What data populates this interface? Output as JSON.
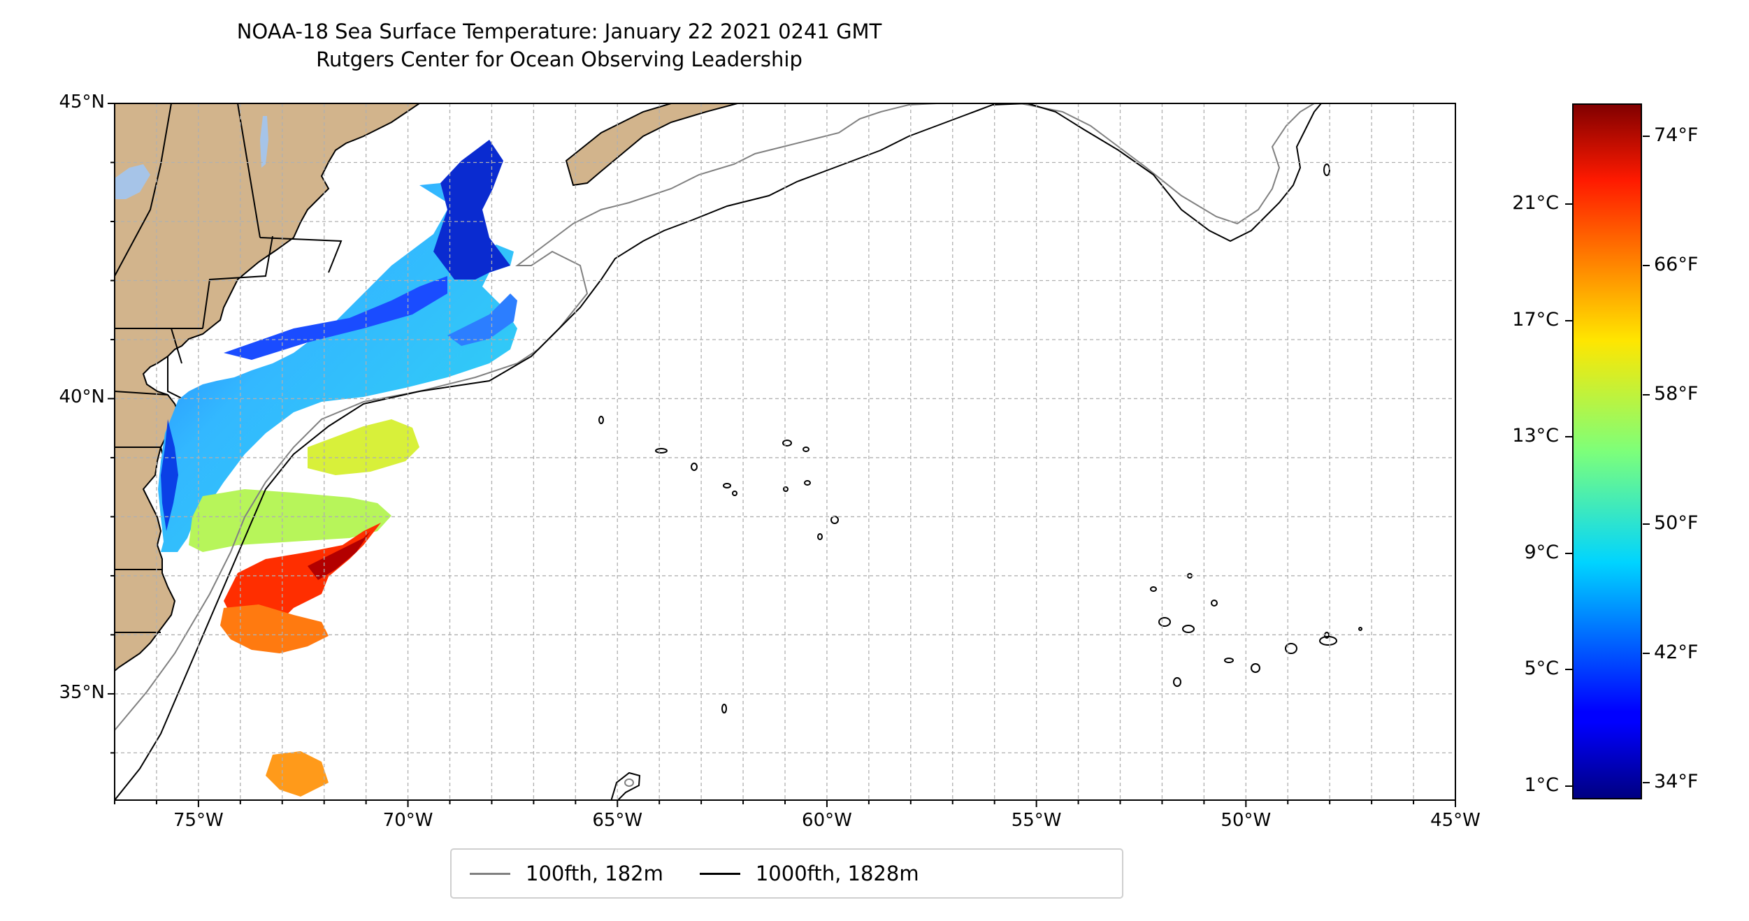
{
  "title": {
    "line1": "NOAA-18 Sea Surface Temperature: January 22 2021 0241 GMT",
    "line2": "Rutgers Center for Ocean Observing Leadership"
  },
  "map": {
    "lon_range": [
      -77,
      -45
    ],
    "lat_range": [
      33.2,
      45
    ],
    "lat_ticks": [
      {
        "value": 45,
        "label": "45°N"
      },
      {
        "value": 40,
        "label": "40°N"
      },
      {
        "value": 35,
        "label": "35°N"
      }
    ],
    "lon_ticks": [
      {
        "value": -75,
        "label": "75°W"
      },
      {
        "value": -70,
        "label": "70°W"
      },
      {
        "value": -65,
        "label": "65°W"
      },
      {
        "value": -60,
        "label": "60°W"
      },
      {
        "value": -55,
        "label": "55°W"
      },
      {
        "value": -50,
        "label": "50°W"
      },
      {
        "value": -45,
        "label": "45°W"
      }
    ],
    "gridlines": true,
    "land_color": "#d2b48c",
    "lake_color": "#a6c4e8"
  },
  "legend": {
    "items": [
      {
        "label": "100fth, 182m",
        "color": "#808080"
      },
      {
        "label": "1000fth, 1828m",
        "color": "#000000"
      }
    ]
  },
  "colorbar": {
    "colormap": "jet",
    "celsius_ticks": [
      {
        "value": 1,
        "label": "1°C"
      },
      {
        "value": 5,
        "label": "5°C"
      },
      {
        "value": 9,
        "label": "9°C"
      },
      {
        "value": 13,
        "label": "13°C"
      },
      {
        "value": 17,
        "label": "17°C"
      },
      {
        "value": 21,
        "label": "21°C"
      }
    ],
    "fahrenheit_ticks": [
      {
        "value": 34,
        "label": "34°F"
      },
      {
        "value": 42,
        "label": "42°F"
      },
      {
        "value": 50,
        "label": "50°F"
      },
      {
        "value": 58,
        "label": "58°F"
      },
      {
        "value": 66,
        "label": "66°F"
      },
      {
        "value": 74,
        "label": "74°F"
      }
    ],
    "f_range": [
      33,
      76
    ]
  }
}
